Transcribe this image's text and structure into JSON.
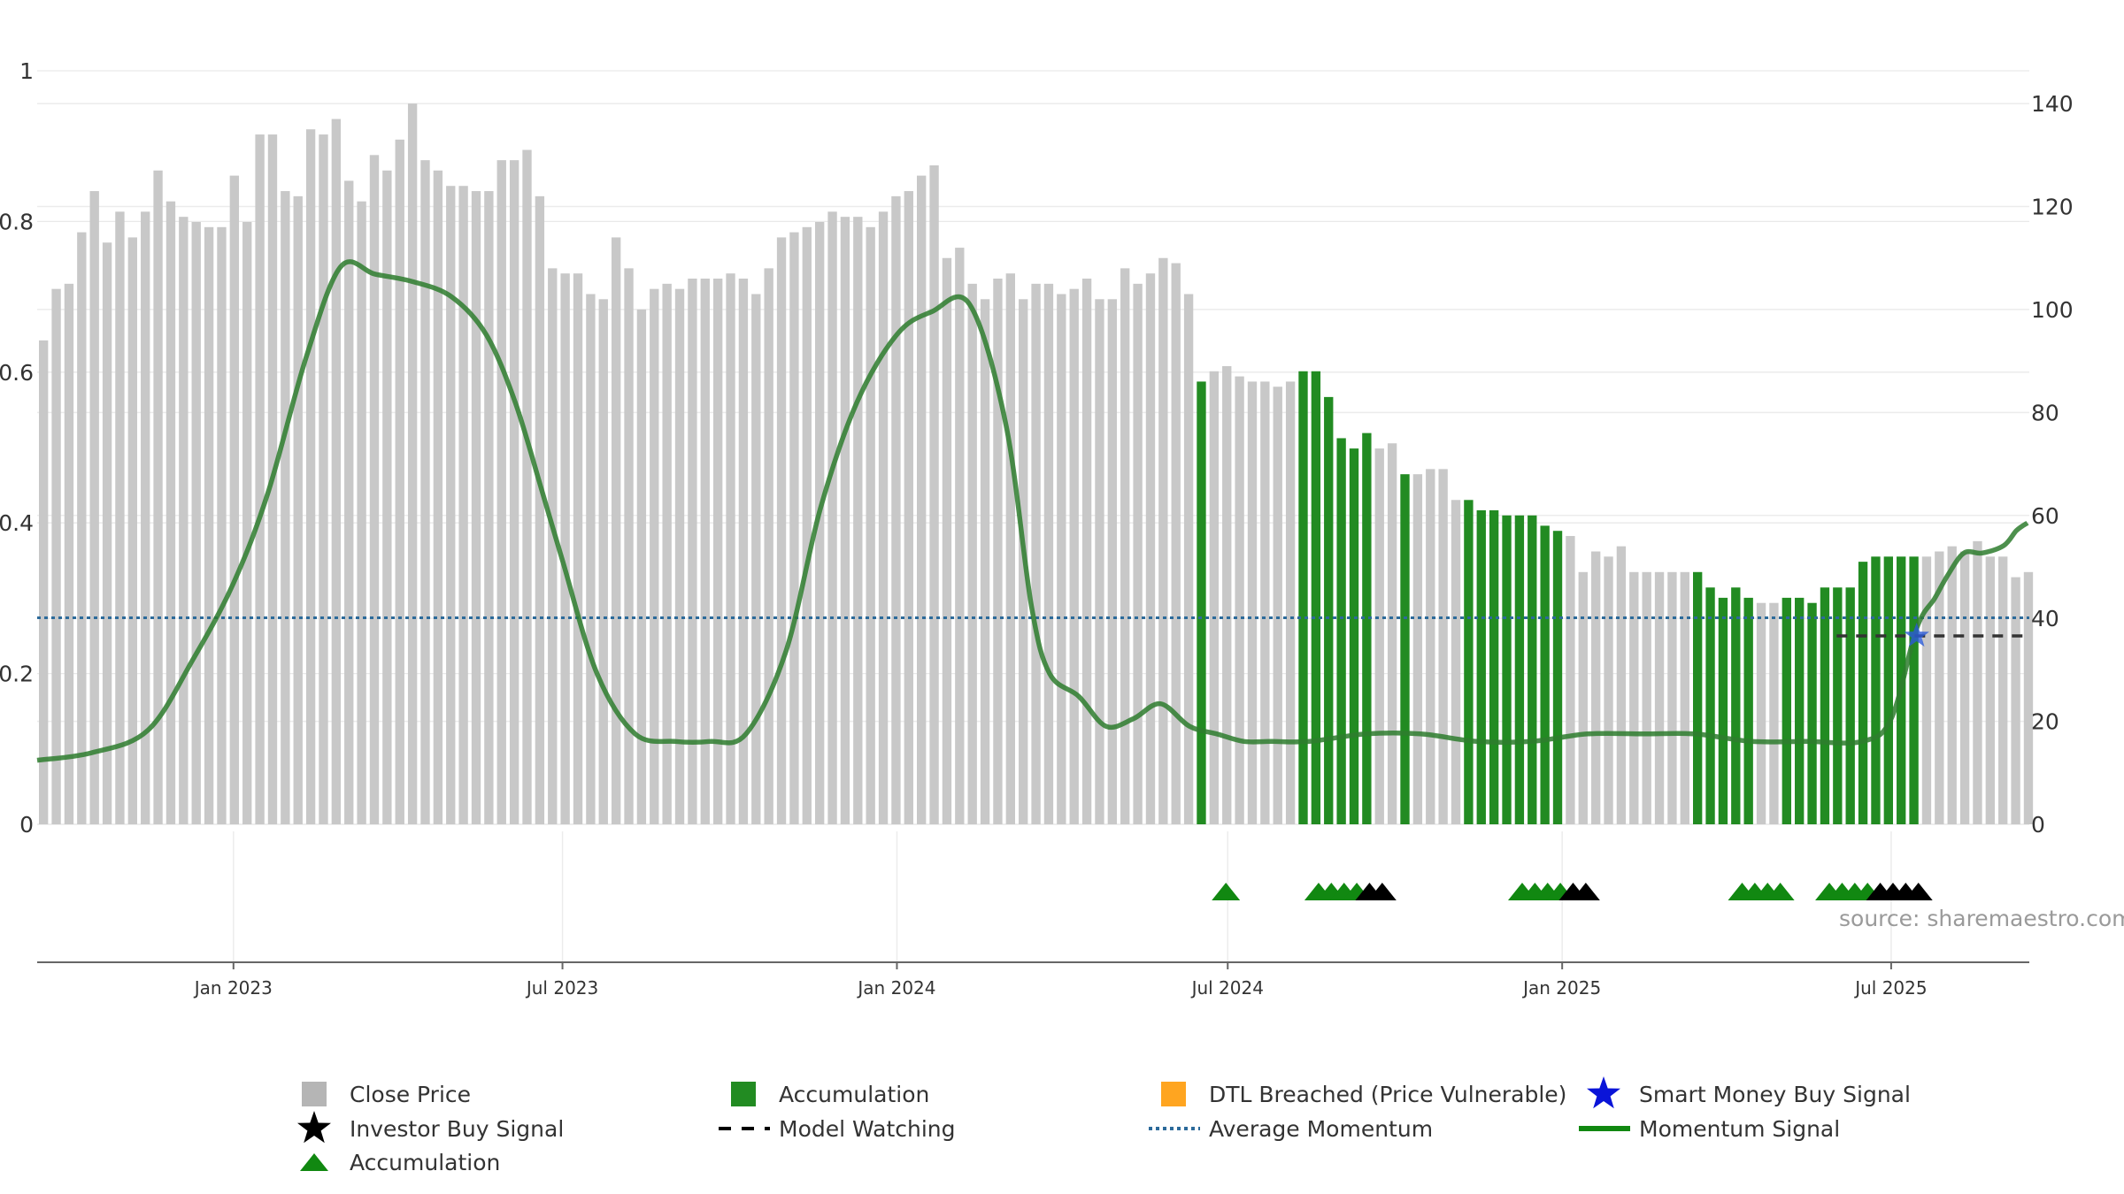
{
  "chart_data": {
    "type": "bar",
    "source_label": "source: sharemaestro.com",
    "left_axis": {
      "ylim": [
        0,
        1
      ],
      "ticks": [
        "0",
        "0.2",
        "0.4",
        "0.6",
        "0.8",
        "1"
      ]
    },
    "right_axis": {
      "ylim": [
        0,
        145
      ],
      "ticks": [
        "0",
        "20",
        "40",
        "60",
        "80",
        "100",
        "120",
        "140"
      ]
    },
    "x_ticks": [
      {
        "label": "Jan 2023",
        "date": "2023-01-01"
      },
      {
        "label": "Jul 2023",
        "date": "2023-07-01"
      },
      {
        "label": "Jan 2024",
        "date": "2024-01-01"
      },
      {
        "label": "Jul 2024",
        "date": "2024-07-01"
      },
      {
        "label": "Jan 2025",
        "date": "2025-01-01"
      },
      {
        "label": "Jul 2025",
        "date": "2025-07-01"
      }
    ],
    "x_range": [
      "2022-09-15",
      "2025-09-15"
    ],
    "average_momentum": 0.274,
    "legend": [
      {
        "label": "Close Price",
        "marker": "square",
        "color": "#b5b5b5"
      },
      {
        "label": "Accumulation",
        "marker": "square",
        "color": "#228b22"
      },
      {
        "label": "DTL Breached (Price Vulnerable)",
        "marker": "square",
        "color": "#ffa520"
      },
      {
        "label": "Smart Money Buy Signal",
        "marker": "star",
        "color": "#0a14d8"
      },
      {
        "label": "Investor Buy Signal",
        "marker": "star",
        "color": "#000000"
      },
      {
        "label": "Model Watching",
        "marker": "dash",
        "color": "#000000"
      },
      {
        "label": "Average Momentum",
        "marker": "dotted",
        "color": "#2c6a9a"
      },
      {
        "label": "Momentum Signal",
        "marker": "line",
        "color": "#118811"
      },
      {
        "label": "Accumulation",
        "marker": "triangle",
        "color": "#118811"
      }
    ],
    "price_bars": {
      "start": "2022-09-15",
      "interval_days": 7,
      "values": [
        94,
        104,
        105,
        115,
        123,
        113,
        119,
        114,
        119,
        127,
        121,
        118,
        117,
        116,
        116,
        126,
        117,
        134,
        134,
        123,
        122,
        135,
        134,
        137,
        125,
        121,
        130,
        127,
        133,
        140,
        129,
        127,
        124,
        124,
        123,
        123,
        129,
        129,
        131,
        122,
        108,
        107,
        107,
        103,
        102,
        114,
        108,
        100,
        104,
        105,
        104,
        106,
        106,
        106,
        107,
        106,
        103,
        108,
        114,
        115,
        116,
        117,
        119,
        118,
        118,
        116,
        119,
        122,
        123,
        126,
        128,
        110,
        112,
        105,
        102,
        106,
        107,
        102,
        105,
        105,
        103,
        104,
        106,
        102,
        102,
        108,
        105,
        107,
        110,
        109,
        103,
        86,
        88,
        89,
        87,
        86,
        86,
        85,
        86,
        88,
        88,
        83,
        75,
        73,
        76,
        73,
        74,
        68,
        68,
        69,
        69,
        63,
        63,
        61,
        61,
        60,
        60,
        60,
        58,
        57,
        56,
        49,
        53,
        52,
        54,
        49,
        49,
        49,
        49,
        49,
        49,
        46,
        44,
        46,
        44,
        43,
        43,
        44,
        44,
        43,
        46,
        46,
        46,
        51,
        52,
        52,
        52,
        52,
        52,
        53,
        54,
        53,
        55,
        52,
        52,
        48,
        49
      ]
    },
    "accumulation_bars": [
      91,
      99,
      100,
      101,
      102,
      103,
      104,
      107,
      112,
      113,
      114,
      115,
      116,
      117,
      118,
      119,
      130,
      131,
      132,
      133,
      134,
      137,
      138,
      139,
      140,
      141,
      142,
      143,
      144,
      145,
      146,
      147
    ],
    "momentum": {
      "x": [
        "2022-09-15",
        "2022-10-15",
        "2022-11-15",
        "2022-12-10",
        "2023-01-01",
        "2023-01-20",
        "2023-02-10",
        "2023-03-01",
        "2023-03-20",
        "2023-04-10",
        "2023-05-01",
        "2023-05-20",
        "2023-06-05",
        "2023-06-20",
        "2023-07-01",
        "2023-07-20",
        "2023-08-10",
        "2023-09-01",
        "2023-09-20",
        "2023-10-10",
        "2023-11-01",
        "2023-11-20",
        "2023-12-10",
        "2024-01-01",
        "2024-01-20",
        "2024-02-10",
        "2024-03-01",
        "2024-03-15",
        "2024-03-25",
        "2024-04-10",
        "2024-04-25",
        "2024-05-10",
        "2024-05-25",
        "2024-06-10",
        "2024-06-25",
        "2024-07-10",
        "2024-07-25",
        "2024-08-15",
        "2024-09-15",
        "2024-10-15",
        "2024-11-15",
        "2024-12-15",
        "2025-01-15",
        "2025-02-15",
        "2025-03-15",
        "2025-04-15",
        "2025-05-15",
        "2025-06-15",
        "2025-07-01",
        "2025-07-15",
        "2025-07-25",
        "2025-08-01",
        "2025-08-10",
        "2025-08-20",
        "2025-09-01",
        "2025-09-08",
        "2025-09-14"
      ],
      "y": [
        0.085,
        0.095,
        0.125,
        0.22,
        0.32,
        0.44,
        0.62,
        0.74,
        0.73,
        0.72,
        0.7,
        0.65,
        0.56,
        0.44,
        0.35,
        0.2,
        0.12,
        0.11,
        0.11,
        0.12,
        0.23,
        0.42,
        0.56,
        0.65,
        0.68,
        0.69,
        0.53,
        0.29,
        0.2,
        0.17,
        0.13,
        0.14,
        0.16,
        0.13,
        0.12,
        0.11,
        0.11,
        0.11,
        0.12,
        0.12,
        0.11,
        0.11,
        0.12,
        0.12,
        0.12,
        0.11,
        0.11,
        0.11,
        0.14,
        0.26,
        0.3,
        0.33,
        0.36,
        0.36,
        0.37,
        0.39,
        0.4
      ]
    },
    "model_watching": {
      "start": "2025-06-01",
      "end": "2025-09-15",
      "value": 0.25
    },
    "smart_money_signals": [
      {
        "date": "2025-07-15",
        "value": 0.25
      }
    ],
    "signal_markers": {
      "accumulation": [
        "2024-06-30",
        "2024-08-20",
        "2024-08-27",
        "2024-09-03",
        "2024-09-10",
        "2024-12-10",
        "2024-12-17",
        "2024-12-24",
        "2024-12-31",
        "2025-04-10",
        "2025-04-17",
        "2025-04-24",
        "2025-05-01",
        "2025-05-28",
        "2025-06-04",
        "2025-06-11",
        "2025-06-18"
      ],
      "investor": [
        "2024-09-17",
        "2024-09-24",
        "2025-01-07",
        "2025-01-14",
        "2025-06-25",
        "2025-07-02",
        "2025-07-09",
        "2025-07-16"
      ]
    }
  }
}
